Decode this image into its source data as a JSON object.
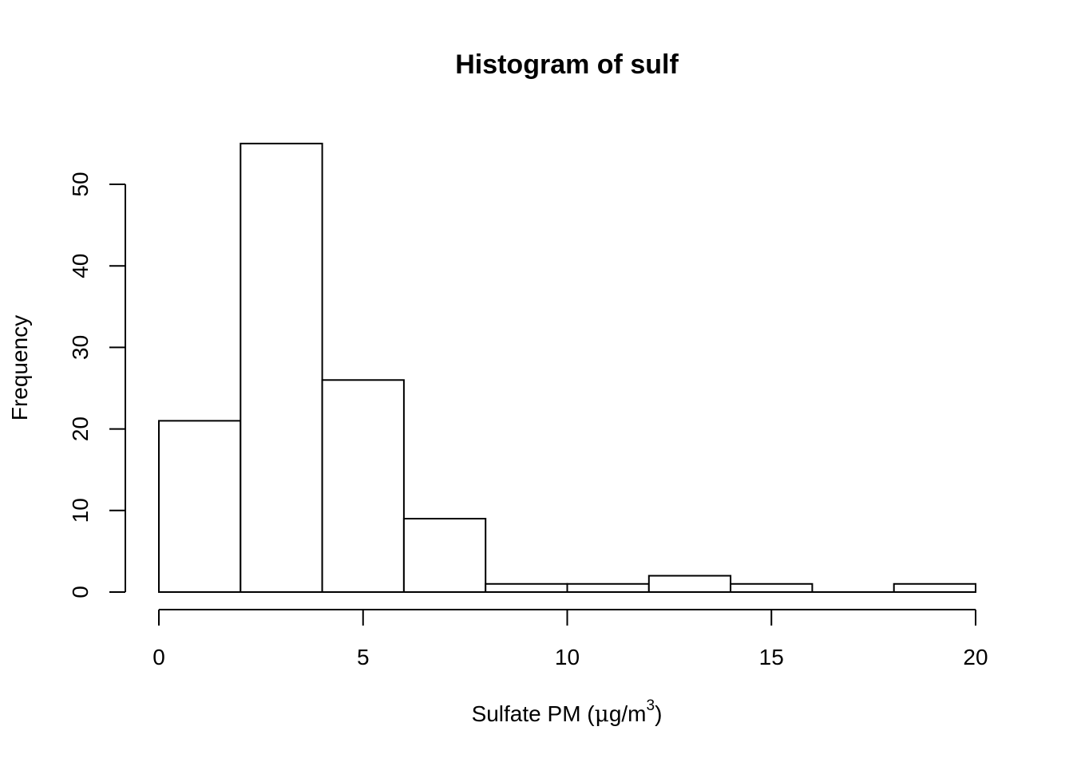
{
  "chart_data": {
    "type": "bar",
    "title": "Histogram of sulf",
    "xlabel": "Sulfate PM (μg/m3)",
    "xlabel_parts": {
      "main": "Sulfate PM (",
      "mu": "μ",
      "unit": "g/m",
      "exp": "3",
      "close": ")"
    },
    "ylabel": "Frequency",
    "bins": [
      {
        "from": 0,
        "to": 2,
        "count": 21
      },
      {
        "from": 2,
        "to": 4,
        "count": 55
      },
      {
        "from": 4,
        "to": 6,
        "count": 26
      },
      {
        "from": 6,
        "to": 8,
        "count": 9
      },
      {
        "from": 8,
        "to": 10,
        "count": 1
      },
      {
        "from": 10,
        "to": 12,
        "count": 1
      },
      {
        "from": 12,
        "to": 14,
        "count": 2
      },
      {
        "from": 14,
        "to": 16,
        "count": 1
      },
      {
        "from": 16,
        "to": 18,
        "count": 0
      },
      {
        "from": 18,
        "to": 20,
        "count": 1
      }
    ],
    "xlim": [
      0,
      20
    ],
    "ylim": [
      0,
      55
    ],
    "xticks": [
      0,
      5,
      10,
      15,
      20
    ],
    "yticks": [
      0,
      10,
      20,
      30,
      40,
      50
    ],
    "grid": false
  }
}
